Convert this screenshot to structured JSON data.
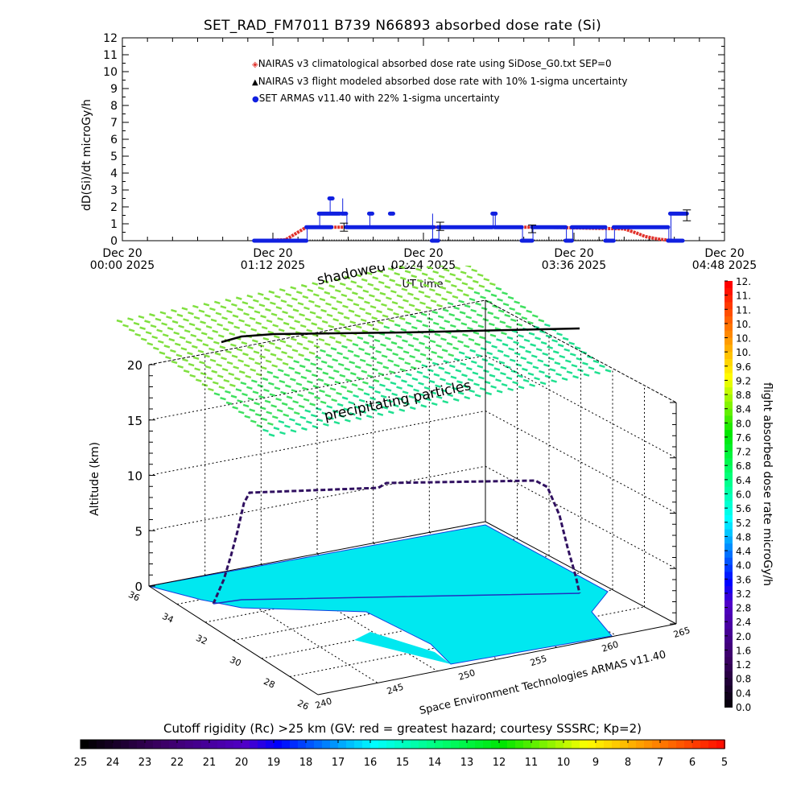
{
  "chart_data": [
    {
      "type": "line",
      "title": "SET_RAD_FM7011  B739 N66893 absorbed dose rate (Si)",
      "xlabel": "UT time",
      "ylabel": "dD(Si)/dt microGy/h",
      "ylim": [
        0,
        12
      ],
      "yticks": [
        "0",
        "1",
        "2",
        "3",
        "4",
        "5",
        "6",
        "7",
        "8",
        "9",
        "10",
        "11",
        "12"
      ],
      "xlim_minutes": [
        0,
        288
      ],
      "xticks": [
        {
          "line1": "Dec 20",
          "line2": "00:00 2025",
          "minutes": 0
        },
        {
          "line1": "Dec 20",
          "line2": "01:12 2025",
          "minutes": 72
        },
        {
          "line1": "Dec 20",
          "line2": "02:24 2025",
          "minutes": 144
        },
        {
          "line1": "Dec 20",
          "line2": "03:36 2025",
          "minutes": 216
        },
        {
          "line1": "Dec 20",
          "line2": "04:48 2025",
          "minutes": 288
        }
      ],
      "legend": [
        {
          "label": "NAIRAS v3 climatological absorbed dose rate using SiDose_G0.txt SEP=0",
          "marker": "diamond",
          "color": "#e0302a"
        },
        {
          "label": "NAIRAS v3 flight modeled absorbed dose rate with 10% 1-sigma uncertainty",
          "marker": "triangle",
          "color": "#000000"
        },
        {
          "label": "SET ARMAS v11.40 with 22% 1-sigma uncertainty",
          "marker": "circle",
          "color": "#1020e0"
        }
      ],
      "legend_position": "top-center",
      "series": [
        {
          "name": "NAIRAS climatological",
          "color": "#e0302a",
          "x": [
            63,
            78,
            80,
            84,
            88,
            200,
            240,
            246,
            250,
            256,
            262,
            268
          ],
          "y": [
            0.0,
            0.05,
            0.2,
            0.5,
            0.8,
            0.8,
            0.7,
            0.45,
            0.25,
            0.1,
            0.02,
            0.0
          ]
        },
        {
          "name": "NAIRAS flight modeled",
          "color": "#000000",
          "x": [
            63,
            268
          ],
          "y": [
            0.0,
            0.0
          ],
          "error_bars": [
            {
              "x": 106,
              "y": 0.8
            },
            {
              "x": 152,
              "y": 0.85
            },
            {
              "x": 196,
              "y": 0.7
            },
            {
              "x": 270,
              "y": 1.5
            }
          ]
        },
        {
          "name": "SET ARMAS",
          "color": "#1020e0",
          "segments": [
            {
              "x": [
                63,
                88
              ],
              "y": [
                0,
                0
              ]
            },
            {
              "x": [
                88,
                100
              ],
              "y": [
                0.8,
                0.8
              ]
            },
            {
              "x": [
                94,
                104
              ],
              "y": [
                1.6,
                1.6
              ]
            },
            {
              "x": [
                99,
                100
              ],
              "y": [
                2.5,
                2.5
              ]
            },
            {
              "x": [
                105,
                107
              ],
              "y": [
                1.6,
                1.6
              ]
            },
            {
              "x": [
                107,
                149
              ],
              "y": [
                0.8,
                0.8
              ]
            },
            {
              "x": [
                118,
                119
              ],
              "y": [
                1.6,
                1.6
              ]
            },
            {
              "x": [
                128,
                129
              ],
              "y": [
                1.6,
                1.6
              ]
            },
            {
              "x": [
                148,
                151
              ],
              "y": [
                0,
                0
              ]
            },
            {
              "x": [
                151,
                177
              ],
              "y": [
                0.8,
                0.8
              ]
            },
            {
              "x": [
                177,
                178
              ],
              "y": [
                1.6,
                1.6
              ]
            },
            {
              "x": [
                178,
                191
              ],
              "y": [
                0.8,
                0.8
              ]
            },
            {
              "x": [
                191,
                196
              ],
              "y": [
                0,
                0
              ]
            },
            {
              "x": [
                196,
                212
              ],
              "y": [
                0.8,
                0.8
              ]
            },
            {
              "x": [
                212,
                215
              ],
              "y": [
                0,
                0
              ]
            },
            {
              "x": [
                215,
                231
              ],
              "y": [
                0.8,
                0.8
              ]
            },
            {
              "x": [
                231,
                235
              ],
              "y": [
                0,
                0
              ]
            },
            {
              "x": [
                235,
                261
              ],
              "y": [
                0.8,
                0.8
              ]
            },
            {
              "x": [
                261,
                268
              ],
              "y": [
                0,
                0
              ]
            },
            {
              "x": [
                262,
                270
              ],
              "y": [
                1.6,
                1.6
              ]
            }
          ]
        }
      ],
      "annotations": [
        "shadowed flight path"
      ]
    },
    {
      "type": "scatter",
      "subtype": "3d-flight-track",
      "zlabel": "Altitude (km)",
      "zticks": [
        "0",
        "5",
        "10",
        "15",
        "20"
      ],
      "zlim": [
        0,
        20
      ],
      "lat_ticks": [
        "36",
        "34",
        "32",
        "30",
        "28",
        "26"
      ],
      "lon_ticks": [
        "240",
        "245",
        "250",
        "255",
        "260",
        "265"
      ],
      "xlabel": "Space Environment Technologies ARMAS v11.40",
      "annotations": [
        "precipitating particles",
        "shadowed flight path"
      ],
      "flight_track": {
        "description": "climb from ~0 km near lon 243 to ~10 km cruise, step-climb to ~11 km, descend to ~0 km near lon 262",
        "cruise_altitude_km": [
          10,
          11
        ]
      },
      "surface_cutoff_rigidity_gv": 17
    }
  ],
  "dose_colorbar": {
    "title": "flight absorbed dose rate microGy/h",
    "labels": [
      "12.",
      "11.",
      "11.",
      "10.",
      "10.",
      "10.",
      "9.6",
      "9.2",
      "8.8",
      "8.4",
      "8.0",
      "7.6",
      "7.2",
      "6.8",
      "6.4",
      "6.0",
      "5.6",
      "5.2",
      "4.8",
      "4.4",
      "4.0",
      "3.6",
      "3.2",
      "2.8",
      "2.4",
      "2.0",
      "1.6",
      "1.2",
      "0.8",
      "0.4",
      "0.0"
    ],
    "range": [
      0,
      12
    ]
  },
  "rigidity_colorbar": {
    "title": "Cutoff rigidity (Rc) >25 km (GV: red = greatest hazard; courtesy SSSRC; Kp=2)",
    "labels": [
      "25",
      "24",
      "23",
      "22",
      "21",
      "20",
      "19",
      "18",
      "17",
      "16",
      "15",
      "14",
      "13",
      "12",
      "11",
      "10",
      "9",
      "8",
      "7",
      "6",
      "5"
    ],
    "range": [
      25,
      5
    ]
  },
  "colors": {
    "surface": "#00e8f0",
    "particles_top": "#7be03a",
    "particles_bottom": "#20e080",
    "track": "#301060"
  }
}
